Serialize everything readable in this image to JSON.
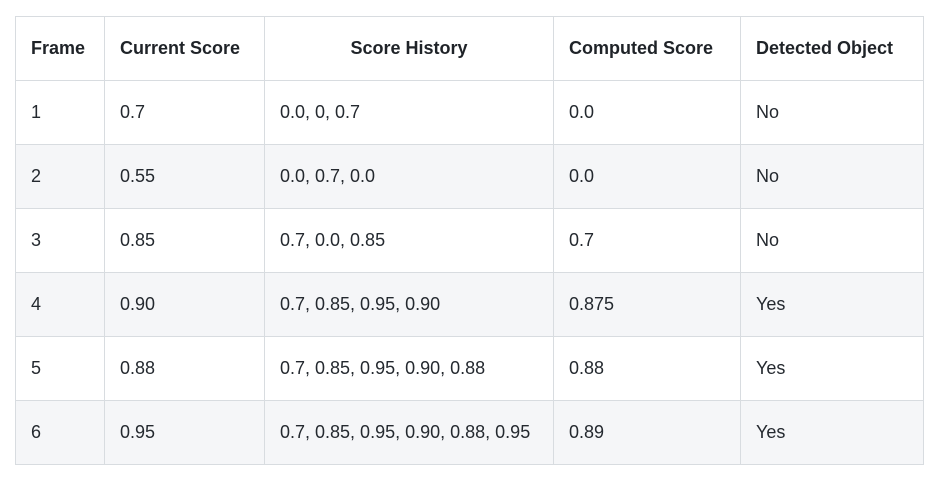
{
  "table": {
    "headers": [
      "Frame",
      "Current Score",
      "Score History",
      "Computed Score",
      "Detected Object"
    ],
    "rows": [
      [
        "1",
        "0.7",
        "0.0, 0, 0.7",
        "0.0",
        "No"
      ],
      [
        "2",
        "0.55",
        "0.0, 0.7, 0.0",
        "0.0",
        "No"
      ],
      [
        "3",
        "0.85",
        "0.7, 0.0, 0.85",
        "0.7",
        "No"
      ],
      [
        "4",
        "0.90",
        "0.7, 0.85, 0.95, 0.90",
        "0.875",
        "Yes"
      ],
      [
        "5",
        "0.88",
        "0.7, 0.85, 0.95, 0.90, 0.88",
        "0.88",
        "Yes"
      ],
      [
        "6",
        "0.95",
        "0.7, 0.85, 0.95, 0.90, 0.88, 0.95",
        "0.89",
        "Yes"
      ]
    ]
  },
  "colors": {
    "border": "#d8dce0",
    "stripe": "#f5f6f8",
    "text": "#1f2328"
  }
}
